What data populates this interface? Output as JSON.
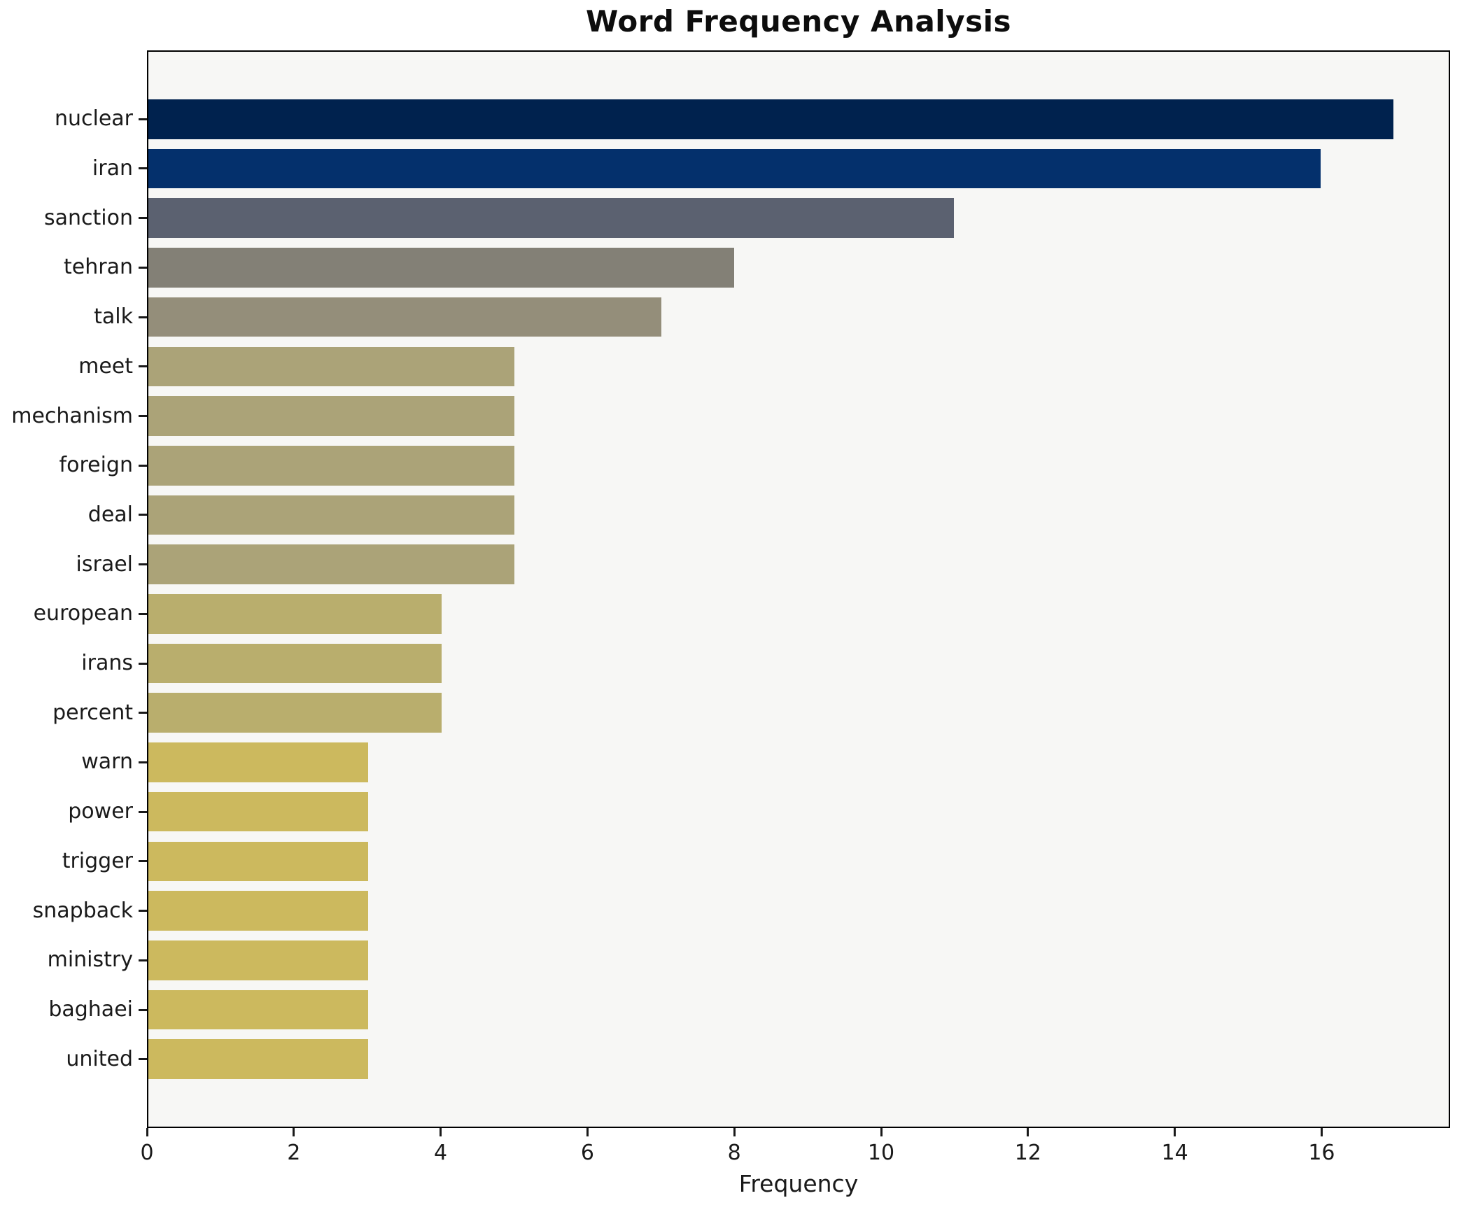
{
  "title": "Word Frequency Analysis",
  "x_axis_label": "Frequency",
  "chart_data": {
    "type": "bar",
    "orientation": "horizontal",
    "title": "Word Frequency Analysis",
    "xlabel": "Frequency",
    "ylabel": "",
    "xlim": [
      0,
      17.75
    ],
    "x_ticks": [
      0,
      2,
      4,
      6,
      8,
      10,
      12,
      14,
      16
    ],
    "grid": false,
    "legend": "none",
    "colormap": "cividis",
    "plot_background": "#f7f7f5",
    "figure_background": "#ffffff",
    "spine_color": "#000000",
    "categories": [
      "nuclear",
      "iran",
      "sanction",
      "tehran",
      "talk",
      "meet",
      "mechanism",
      "foreign",
      "deal",
      "israel",
      "european",
      "irans",
      "percent",
      "warn",
      "power",
      "trigger",
      "snapback",
      "ministry",
      "baghaei",
      "united"
    ],
    "values": [
      17,
      16,
      11,
      8,
      7,
      5,
      5,
      5,
      5,
      5,
      4,
      4,
      4,
      3,
      3,
      3,
      3,
      3,
      3,
      3
    ],
    "bar_colors": [
      "#00224e",
      "#04306c",
      "#5b6170",
      "#838076",
      "#948e7a",
      "#aba378",
      "#aba378",
      "#aba378",
      "#aba378",
      "#aba378",
      "#b9ae6d",
      "#b9ae6d",
      "#b9ae6d",
      "#ccb95e",
      "#ccb95e",
      "#ccb95e",
      "#ccb95e",
      "#ccb95e",
      "#ccb95e",
      "#ccb95e"
    ]
  }
}
